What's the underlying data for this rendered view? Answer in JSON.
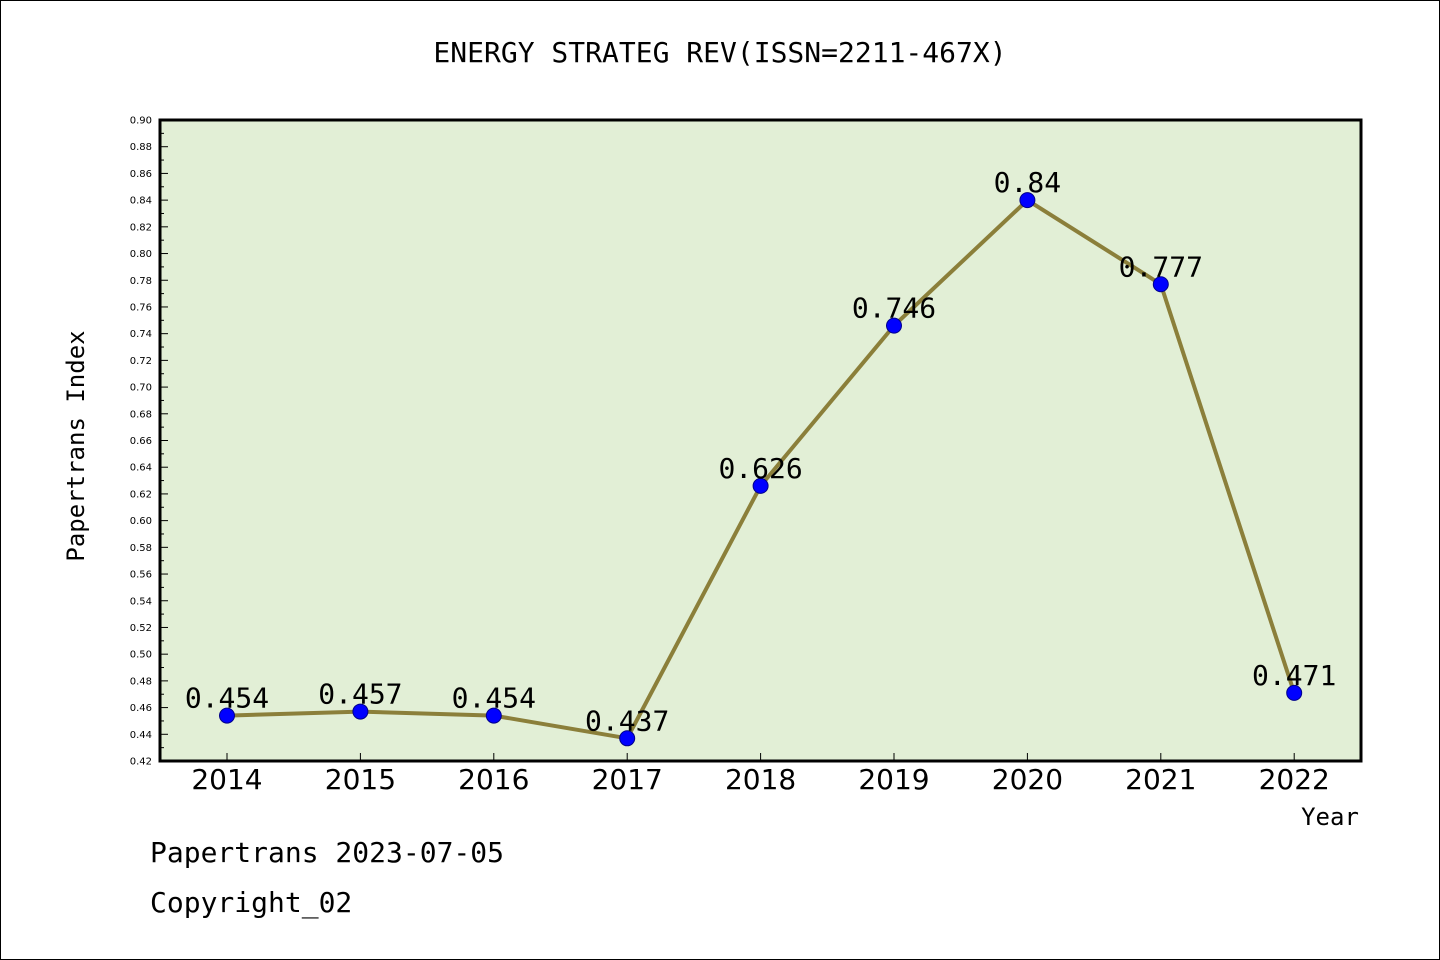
{
  "chart_data": {
    "type": "line",
    "title": "ENERGY STRATEG REV(ISSN=2211-467X)",
    "xlabel": "Year",
    "ylabel": "Papertrans Index",
    "categories": [
      "2014",
      "2015",
      "2016",
      "2017",
      "2018",
      "2019",
      "2020",
      "2021",
      "2022"
    ],
    "values": [
      0.454,
      0.457,
      0.454,
      0.437,
      0.626,
      0.746,
      0.84,
      0.777,
      0.471
    ],
    "data_labels": [
      "0.454",
      "0.457",
      "0.454",
      "0.437",
      "0.626",
      "0.746",
      "0.84",
      "0.777",
      "0.471"
    ],
    "ylim": [
      0.42,
      0.9
    ],
    "yticks": [
      "0.42",
      "0.44",
      "0.46",
      "0.48",
      "0.50",
      "0.52",
      "0.54",
      "0.56",
      "0.58",
      "0.60",
      "0.62",
      "0.64",
      "0.66",
      "0.68",
      "0.70",
      "0.72",
      "0.74",
      "0.76",
      "0.78",
      "0.80",
      "0.82",
      "0.84",
      "0.86",
      "0.88",
      "0.90"
    ],
    "grid": false,
    "colors": {
      "plot_bg": "#e2efd6",
      "line": "#8b7f3a",
      "marker": "#0000ff"
    }
  },
  "footer": {
    "line1": "Papertrans 2023-07-05",
    "line2": "Copyright_02"
  }
}
